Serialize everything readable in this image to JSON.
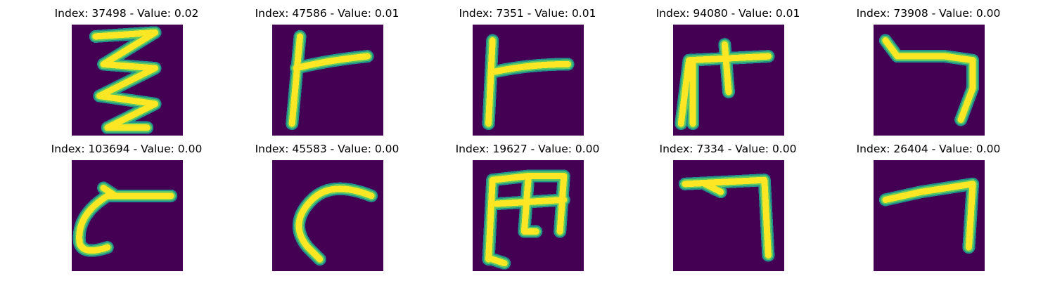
{
  "colors": {
    "background": "#440154",
    "stroke_core": "#fde725",
    "stroke_mid": "#5ec962",
    "stroke_edge": "#21918c"
  },
  "panels": [
    {
      "title": "Index: 37498 - Value: 0.02"
    },
    {
      "title": "Index: 47586 - Value: 0.01"
    },
    {
      "title": "Index: 7351 - Value: 0.01"
    },
    {
      "title": "Index: 94080 - Value: 0.01"
    },
    {
      "title": "Index: 73908 - Value: 0.00"
    },
    {
      "title": "Index: 103694 - Value: 0.00"
    },
    {
      "title": "Index: 45583 - Value: 0.00"
    },
    {
      "title": "Index: 19627 - Value: 0.00"
    },
    {
      "title": "Index: 7334 - Value: 0.00"
    },
    {
      "title": "Index: 26404 - Value: 0.00"
    }
  ]
}
